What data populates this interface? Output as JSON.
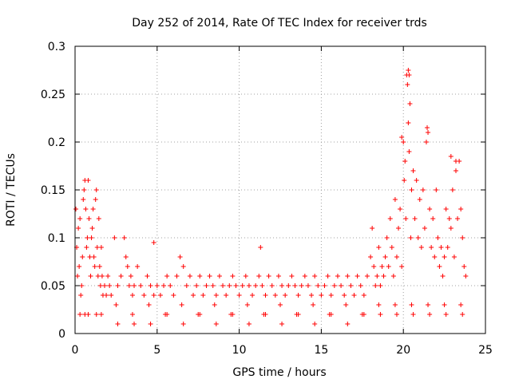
{
  "chart_data": {
    "type": "scatter",
    "title": "Day 252 of 2014, Rate Of TEC Index for receiver trds",
    "xlabel": "GPS time / hours",
    "ylabel": "ROTI / TECUs",
    "xlim": [
      0,
      25
    ],
    "ylim": [
      0,
      0.3
    ],
    "xticks": [
      0,
      5,
      10,
      15,
      20,
      25
    ],
    "yticks": [
      0,
      0.05,
      0.1,
      0.15,
      0.2,
      0.25,
      0.3
    ],
    "ytick_labels": [
      "0",
      "0.05",
      "0.1",
      "0.15",
      "0.2",
      "0.25",
      "0.3"
    ],
    "grid": true,
    "marker": "+",
    "color": "#ff0000",
    "series": [
      {
        "name": "ROTI",
        "x": [
          0.05,
          0.1,
          0.15,
          0.2,
          0.25,
          0.3,
          0.35,
          0.4,
          0.45,
          0.5,
          0.55,
          0.6,
          0.65,
          0.7,
          0.75,
          0.8,
          0.85,
          0.9,
          0.95,
          1.0,
          1.05,
          1.1,
          1.15,
          1.2,
          1.25,
          1.3,
          1.35,
          1.4,
          1.45,
          1.5,
          1.55,
          1.6,
          1.65,
          1.7,
          1.8,
          1.9,
          2.0,
          2.1,
          2.2,
          2.4,
          2.6,
          2.8,
          3.0,
          3.1,
          3.2,
          3.3,
          3.4,
          3.5,
          3.6,
          3.8,
          4.0,
          4.2,
          4.4,
          4.6,
          4.8,
          5.0,
          5.2,
          5.4,
          5.6,
          5.8,
          6.0,
          6.2,
          6.4,
          6.6,
          6.8,
          7.0,
          7.2,
          7.4,
          7.6,
          7.8,
          8.0,
          8.2,
          8.4,
          8.6,
          8.8,
          9.0,
          9.2,
          9.4,
          9.6,
          9.8,
          10.0,
          10.2,
          10.4,
          10.6,
          10.8,
          11.0,
          11.2,
          11.4,
          11.6,
          11.8,
          12.0,
          12.2,
          12.4,
          12.6,
          12.8,
          13.0,
          13.2,
          13.4,
          13.6,
          13.8,
          14.0,
          14.2,
          14.4,
          14.6,
          14.8,
          15.0,
          15.2,
          15.4,
          15.6,
          15.8,
          16.0,
          16.2,
          16.4,
          16.6,
          16.8,
          17.0,
          17.2,
          17.4,
          17.6,
          17.8,
          18.0,
          18.1,
          18.2,
          18.3,
          18.4,
          18.5,
          18.6,
          18.7,
          18.8,
          18.9,
          19.0,
          19.1,
          19.2,
          19.3,
          19.4,
          19.5,
          19.6,
          19.7,
          19.8,
          19.9,
          20.0,
          20.05,
          20.1,
          20.15,
          20.2,
          20.25,
          20.3,
          20.35,
          20.4,
          20.45,
          20.5,
          20.6,
          20.7,
          20.8,
          20.9,
          21.0,
          21.1,
          21.2,
          21.3,
          21.4,
          21.5,
          21.6,
          21.7,
          21.8,
          21.9,
          22.0,
          22.1,
          22.2,
          22.3,
          22.4,
          22.5,
          22.6,
          22.7,
          22.8,
          22.9,
          23.0,
          23.1,
          23.2,
          23.3,
          23.4,
          23.5,
          23.6,
          23.7,
          23.8,
          0.3,
          0.8,
          1.3,
          2.5,
          3.5,
          4.5,
          5.5,
          6.5,
          7.5,
          8.5,
          9.5,
          10.5,
          11.5,
          12.5,
          13.5,
          14.5,
          15.5,
          16.5,
          17.5,
          18.5,
          19.5,
          20.5,
          21.5,
          22.5,
          23.5,
          0.6,
          1.6,
          2.6,
          3.6,
          4.6,
          5.6,
          6.6,
          7.6,
          8.6,
          9.6,
          10.6,
          11.6,
          12.6,
          13.6,
          14.6,
          15.6,
          16.6,
          17.6,
          18.6,
          19.6,
          20.6,
          21.6,
          22.6,
          23.6,
          11.3,
          4.8,
          20.3,
          20.35,
          21.45,
          19.9,
          22.9,
          23.2
        ],
        "y": [
          0.13,
          0.09,
          0.06,
          0.11,
          0.07,
          0.12,
          0.04,
          0.05,
          0.08,
          0.14,
          0.15,
          0.16,
          0.13,
          0.09,
          0.1,
          0.16,
          0.12,
          0.08,
          0.06,
          0.1,
          0.11,
          0.13,
          0.08,
          0.07,
          0.14,
          0.15,
          0.09,
          0.06,
          0.12,
          0.07,
          0.05,
          0.09,
          0.06,
          0.04,
          0.05,
          0.04,
          0.06,
          0.05,
          0.04,
          0.1,
          0.05,
          0.06,
          0.1,
          0.08,
          0.07,
          0.05,
          0.06,
          0.04,
          0.05,
          0.07,
          0.05,
          0.04,
          0.06,
          0.05,
          0.04,
          0.05,
          0.04,
          0.05,
          0.06,
          0.05,
          0.04,
          0.06,
          0.08,
          0.07,
          0.05,
          0.06,
          0.04,
          0.05,
          0.06,
          0.04,
          0.05,
          0.06,
          0.05,
          0.04,
          0.06,
          0.05,
          0.04,
          0.05,
          0.06,
          0.05,
          0.04,
          0.05,
          0.06,
          0.05,
          0.04,
          0.05,
          0.06,
          0.05,
          0.04,
          0.06,
          0.05,
          0.04,
          0.06,
          0.05,
          0.04,
          0.05,
          0.06,
          0.05,
          0.04,
          0.05,
          0.06,
          0.05,
          0.04,
          0.06,
          0.05,
          0.04,
          0.05,
          0.06,
          0.04,
          0.05,
          0.06,
          0.05,
          0.04,
          0.06,
          0.05,
          0.04,
          0.06,
          0.05,
          0.04,
          0.06,
          0.08,
          0.11,
          0.07,
          0.05,
          0.06,
          0.09,
          0.05,
          0.07,
          0.06,
          0.08,
          0.1,
          0.07,
          0.12,
          0.09,
          0.06,
          0.14,
          0.08,
          0.11,
          0.13,
          0.07,
          0.2,
          0.16,
          0.18,
          0.12,
          0.27,
          0.26,
          0.22,
          0.19,
          0.24,
          0.1,
          0.15,
          0.17,
          0.12,
          0.16,
          0.1,
          0.14,
          0.09,
          0.15,
          0.11,
          0.2,
          0.21,
          0.13,
          0.09,
          0.12,
          0.08,
          0.15,
          0.1,
          0.07,
          0.09,
          0.06,
          0.08,
          0.13,
          0.09,
          0.12,
          0.11,
          0.15,
          0.08,
          0.17,
          0.12,
          0.18,
          0.13,
          0.1,
          0.07,
          0.06,
          0.02,
          0.02,
          0.02,
          0.03,
          0.02,
          0.03,
          0.02,
          0.03,
          0.02,
          0.03,
          0.02,
          0.03,
          0.02,
          0.03,
          0.02,
          0.03,
          0.02,
          0.03,
          0.02,
          0.03,
          0.03,
          0.03,
          0.03,
          0.03,
          0.03,
          0.02,
          0.02,
          0.01,
          0.01,
          0.01,
          0.02,
          0.01,
          0.02,
          0.01,
          0.02,
          0.01,
          0.02,
          0.01,
          0.02,
          0.01,
          0.02,
          0.01,
          0.02,
          0.02,
          0.02,
          0.02,
          0.02,
          0.02,
          0.02,
          0.09,
          0.095,
          0.275,
          0.27,
          0.215,
          0.205,
          0.185,
          0.18
        ]
      }
    ]
  }
}
